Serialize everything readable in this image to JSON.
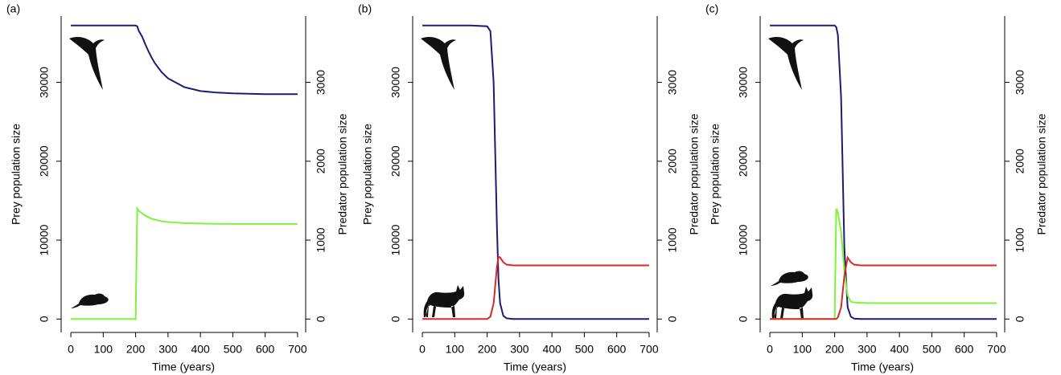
{
  "chart_data": [
    {
      "type": "line",
      "label": "(a)",
      "xlabel": "Time (years)",
      "ylabel": "Prey population size",
      "y2label": "Predator population size",
      "x": [
        0,
        50,
        100,
        150,
        200,
        205,
        210,
        220,
        230,
        240,
        250,
        260,
        280,
        300,
        350,
        400,
        450,
        500,
        600,
        700
      ],
      "xlim": [
        -30,
        725
      ],
      "xticks": [
        0,
        100,
        200,
        300,
        400,
        500,
        600,
        700
      ],
      "ylim": [
        -1700,
        38400
      ],
      "yticks": [
        0,
        10000,
        20000,
        30000
      ],
      "y2lim": [
        -170,
        3840
      ],
      "y2ticks": [
        0,
        1000,
        2000,
        3000
      ],
      "series": [
        {
          "color": "#1f1a73",
          "values": [
            37200,
            37200,
            37200,
            37200,
            37200,
            37100,
            36500,
            35800,
            34800,
            33900,
            33100,
            32400,
            31300,
            30500,
            29400,
            28900,
            28700,
            28600,
            28500,
            28500
          ]
        },
        {
          "color": "#7ff23a",
          "axis": "y2",
          "values": [
            0,
            0,
            0,
            0,
            0,
            1400,
            1370,
            1340,
            1310,
            1290,
            1270,
            1260,
            1240,
            1230,
            1215,
            1210,
            1207,
            1205,
            1205,
            1205
          ]
        }
      ]
    },
    {
      "type": "line",
      "label": "(b)",
      "xlabel": "Time (years)",
      "ylabel": "Prey population size",
      "y2label": "Predator population size",
      "x": [
        0,
        50,
        100,
        150,
        200,
        210,
        220,
        230,
        235,
        240,
        250,
        260,
        280,
        300,
        350,
        400,
        450,
        500,
        600,
        700
      ],
      "xlim": [
        -30,
        725
      ],
      "xticks": [
        0,
        100,
        200,
        300,
        400,
        500,
        600,
        700
      ],
      "ylim": [
        -1700,
        38400
      ],
      "yticks": [
        0,
        10000,
        20000,
        30000
      ],
      "y2lim": [
        -170,
        3840
      ],
      "y2ticks": [
        0,
        1000,
        2000,
        3000
      ],
      "series": [
        {
          "color": "#1f1a73",
          "values": [
            37200,
            37200,
            37200,
            37200,
            37100,
            36500,
            30000,
            12000,
            5000,
            2000,
            400,
            100,
            0,
            0,
            0,
            0,
            0,
            0,
            0,
            0
          ]
        },
        {
          "color": "#d42a2a",
          "axis": "y2",
          "values": [
            0,
            0,
            0,
            0,
            0,
            30,
            200,
            650,
            790,
            780,
            720,
            690,
            680,
            680,
            680,
            680,
            680,
            680,
            680,
            680
          ]
        }
      ]
    },
    {
      "type": "line",
      "label": "(c)",
      "xlabel": "Time (years)",
      "ylabel": "Prey population size",
      "y2label": "Predator population size",
      "x": [
        0,
        50,
        100,
        150,
        200,
        205,
        210,
        220,
        230,
        240,
        250,
        260,
        280,
        300,
        350,
        400,
        450,
        500,
        600,
        700
      ],
      "xlim": [
        -30,
        725
      ],
      "xticks": [
        0,
        100,
        200,
        300,
        400,
        500,
        600,
        700
      ],
      "ylim": [
        -1700,
        38400
      ],
      "yticks": [
        0,
        10000,
        20000,
        30000
      ],
      "y2lim": [
        -170,
        3840
      ],
      "y2ticks": [
        0,
        1000,
        2000,
        3000
      ],
      "series": [
        {
          "color": "#1f1a73",
          "values": [
            37200,
            37200,
            37200,
            37200,
            37200,
            37000,
            36000,
            28000,
            9000,
            1500,
            300,
            50,
            0,
            0,
            0,
            0,
            0,
            0,
            0,
            0
          ]
        },
        {
          "color": "#7ff23a",
          "axis": "y2",
          "values": [
            0,
            0,
            0,
            0,
            0,
            1400,
            1350,
            1100,
            600,
            300,
            220,
            210,
            205,
            203,
            202,
            202,
            202,
            202,
            202,
            202
          ]
        },
        {
          "color": "#d42a2a",
          "axis": "y2",
          "values": [
            0,
            0,
            0,
            0,
            0,
            0,
            20,
            150,
            550,
            780,
            720,
            690,
            680,
            680,
            680,
            680,
            680,
            680,
            680,
            680
          ]
        }
      ]
    }
  ]
}
